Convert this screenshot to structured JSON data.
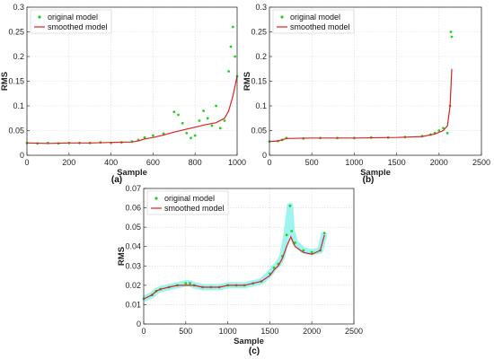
{
  "colors": {
    "original": "#22d022",
    "smoothed": "#e02020",
    "band": "#7ff0ec",
    "grid": "#d8d8d8",
    "axis": "#333333"
  },
  "panels": [
    {
      "label": "(a)",
      "xlabel": "Sample",
      "ylabel": "RMS"
    },
    {
      "label": "(b)",
      "xlabel": "Sample",
      "ylabel": "RMS"
    },
    {
      "label": "(c)",
      "xlabel": "Sample",
      "ylabel": "RMS"
    }
  ],
  "chart_data": [
    {
      "type": "scatter",
      "panel_label": "(a)",
      "xlabel": "Sample",
      "ylabel": "RMS",
      "xlim": [
        0,
        1000
      ],
      "ylim": [
        0,
        0.3
      ],
      "xticks": [
        0,
        200,
        400,
        600,
        800,
        1000
      ],
      "yticks": [
        0,
        0.05,
        0.1,
        0.15,
        0.2,
        0.25,
        0.3
      ],
      "grid": true,
      "legend_position": "top-left",
      "series": [
        {
          "name": "original model",
          "style": "points",
          "x": [
            0,
            50,
            100,
            150,
            200,
            250,
            300,
            350,
            400,
            450,
            500,
            530,
            560,
            600,
            650,
            700,
            720,
            740,
            760,
            780,
            800,
            820,
            840,
            860,
            880,
            900,
            920,
            940,
            960,
            970,
            980,
            990,
            1000
          ],
          "y": [
            0.025,
            0.024,
            0.025,
            0.024,
            0.025,
            0.025,
            0.025,
            0.026,
            0.025,
            0.026,
            0.028,
            0.031,
            0.036,
            0.04,
            0.044,
            0.088,
            0.082,
            0.065,
            0.045,
            0.035,
            0.04,
            0.07,
            0.09,
            0.075,
            0.06,
            0.1,
            0.055,
            0.07,
            0.17,
            0.22,
            0.26,
            0.2,
            0.16
          ]
        },
        {
          "name": "smoothed model",
          "style": "line",
          "x": [
            0,
            100,
            200,
            300,
            400,
            500,
            530,
            560,
            600,
            650,
            700,
            750,
            800,
            850,
            900,
            940,
            960,
            980,
            1000
          ],
          "y": [
            0.025,
            0.024,
            0.025,
            0.025,
            0.026,
            0.027,
            0.029,
            0.033,
            0.036,
            0.041,
            0.047,
            0.052,
            0.057,
            0.062,
            0.066,
            0.075,
            0.09,
            0.12,
            0.16
          ]
        }
      ]
    },
    {
      "type": "scatter",
      "panel_label": "(b)",
      "xlabel": "Sample",
      "ylabel": "RMS",
      "xlim": [
        0,
        2500
      ],
      "ylim": [
        0,
        0.3
      ],
      "xticks": [
        0,
        500,
        1000,
        1500,
        2000,
        2500
      ],
      "yticks": [
        0,
        0.05,
        0.1,
        0.15,
        0.2,
        0.25,
        0.3
      ],
      "grid": true,
      "legend_position": "top-left",
      "series": [
        {
          "name": "original model",
          "style": "points",
          "x": [
            0,
            100,
            150,
            200,
            400,
            600,
            800,
            1000,
            1200,
            1400,
            1600,
            1800,
            1900,
            1950,
            2000,
            2050,
            2100,
            2130,
            2140,
            2150
          ],
          "y": [
            0.028,
            0.029,
            0.031,
            0.035,
            0.034,
            0.035,
            0.035,
            0.035,
            0.036,
            0.036,
            0.037,
            0.039,
            0.042,
            0.045,
            0.05,
            0.055,
            0.045,
            0.1,
            0.25,
            0.24
          ]
        },
        {
          "name": "smoothed model",
          "style": "line",
          "x": [
            0,
            100,
            200,
            500,
            1000,
            1500,
            1800,
            1950,
            2050,
            2100,
            2130,
            2150
          ],
          "y": [
            0.028,
            0.029,
            0.034,
            0.035,
            0.035,
            0.036,
            0.038,
            0.043,
            0.05,
            0.06,
            0.1,
            0.175
          ]
        }
      ]
    },
    {
      "type": "scatter",
      "panel_label": "(c)",
      "xlabel": "Sample",
      "ylabel": "RMS",
      "xlim": [
        0,
        2500
      ],
      "ylim": [
        0,
        0.07
      ],
      "xticks": [
        0,
        500,
        1000,
        1500,
        2000,
        2500
      ],
      "yticks": [
        0,
        0.01,
        0.02,
        0.03,
        0.04,
        0.05,
        0.06,
        0.07
      ],
      "grid": true,
      "legend_position": "top-left",
      "series": [
        {
          "name": "original model",
          "style": "points",
          "x": [
            0,
            100,
            150,
            200,
            300,
            400,
            500,
            550,
            600,
            700,
            800,
            900,
            1000,
            1100,
            1200,
            1300,
            1400,
            1500,
            1550,
            1600,
            1650,
            1700,
            1740,
            1760,
            1800,
            1900,
            2000,
            2100,
            2150
          ],
          "y": [
            0.013,
            0.015,
            0.017,
            0.018,
            0.019,
            0.02,
            0.021,
            0.021,
            0.02,
            0.019,
            0.019,
            0.019,
            0.02,
            0.02,
            0.02,
            0.021,
            0.022,
            0.026,
            0.029,
            0.031,
            0.035,
            0.046,
            0.061,
            0.048,
            0.042,
            0.038,
            0.037,
            0.038,
            0.047
          ]
        },
        {
          "name": "smoothed model",
          "style": "line",
          "x": [
            0,
            100,
            150,
            200,
            300,
            400,
            500,
            600,
            700,
            800,
            900,
            1000,
            1100,
            1200,
            1300,
            1400,
            1500,
            1550,
            1600,
            1650,
            1700,
            1750,
            1800,
            1900,
            2000,
            2100,
            2150
          ],
          "y": [
            0.013,
            0.015,
            0.017,
            0.018,
            0.019,
            0.02,
            0.02,
            0.02,
            0.019,
            0.019,
            0.019,
            0.02,
            0.02,
            0.02,
            0.021,
            0.022,
            0.025,
            0.028,
            0.03,
            0.034,
            0.04,
            0.045,
            0.04,
            0.037,
            0.036,
            0.038,
            0.046
          ]
        }
      ]
    }
  ]
}
